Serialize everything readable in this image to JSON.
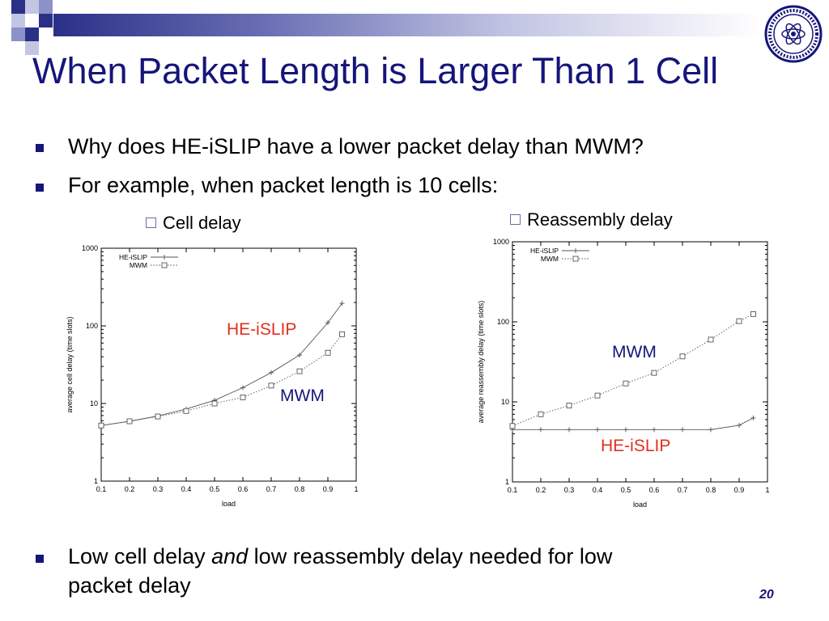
{
  "slide": {
    "title": "When Packet Length is Larger Than 1 Cell",
    "bullets": [
      "Why does HE-iSLIP have a lower packet delay than MWM?",
      "For example, when packet length is 10 cells:"
    ],
    "sub_items": [
      "Cell delay",
      "Reassembly delay"
    ],
    "bottom_bullet": {
      "line1_before": "Low cell delay ",
      "line1_emph": "and",
      "line1_after": " low reassembly delay  needed for low",
      "line2": "packet delay"
    },
    "page_number": "20",
    "colors": {
      "title": "#15157a",
      "annotation_red": "#e0301e",
      "annotation_blue": "#15157a"
    }
  },
  "chart_data": [
    {
      "type": "line",
      "xlabel": "load",
      "ylabel": "average cell delay (time slots)",
      "yscale": "log",
      "xlim": [
        0.1,
        1
      ],
      "ylim": [
        1,
        1000
      ],
      "x_ticks": [
        "0.1",
        "0.2",
        "0.3",
        "0.4",
        "0.5",
        "0.6",
        "0.7",
        "0.8",
        "0.9",
        "1"
      ],
      "y_ticks": [
        "1",
        "10",
        "100",
        "1000"
      ],
      "legend": [
        "HE-iSLIP",
        "MWM"
      ],
      "legend_position": "top-left",
      "series": [
        {
          "name": "HE-iSLIP",
          "x": [
            0.1,
            0.2,
            0.3,
            0.4,
            0.5,
            0.6,
            0.7,
            0.8,
            0.9,
            0.95
          ],
          "values": [
            5.2,
            5.9,
            6.9,
            8.5,
            11,
            16,
            25,
            42,
            110,
            195
          ],
          "marker": "plus",
          "style": "solid"
        },
        {
          "name": "MWM",
          "x": [
            0.1,
            0.2,
            0.3,
            0.4,
            0.5,
            0.6,
            0.7,
            0.8,
            0.9,
            0.95
          ],
          "values": [
            5.2,
            5.9,
            6.8,
            8,
            10,
            12,
            17,
            26,
            45,
            78
          ],
          "marker": "square",
          "style": "dotted"
        }
      ],
      "annotations": [
        {
          "text": "HE-iSLIP",
          "color": "#e0301e"
        },
        {
          "text": "MWM",
          "color": "#15157a"
        }
      ]
    },
    {
      "type": "line",
      "xlabel": "load",
      "ylabel": "average reassembly delay (time slots)",
      "yscale": "log",
      "xlim": [
        0.1,
        1
      ],
      "ylim": [
        1,
        1000
      ],
      "x_ticks": [
        "0.1",
        "0.2",
        "0.3",
        "0.4",
        "0.5",
        "0.6",
        "0.7",
        "0.8",
        "0.9",
        "1"
      ],
      "y_ticks": [
        "1",
        "10",
        "100",
        "1000"
      ],
      "legend": [
        "HE-iSLIP",
        "MWM"
      ],
      "legend_position": "top-left",
      "series": [
        {
          "name": "HE-iSLIP",
          "x": [
            0.1,
            0.2,
            0.3,
            0.4,
            0.5,
            0.6,
            0.7,
            0.8,
            0.9,
            0.95
          ],
          "values": [
            4.5,
            4.5,
            4.5,
            4.5,
            4.5,
            4.5,
            4.5,
            4.5,
            5.1,
            6.3
          ],
          "marker": "plus",
          "style": "solid"
        },
        {
          "name": "MWM",
          "x": [
            0.1,
            0.2,
            0.3,
            0.4,
            0.5,
            0.6,
            0.7,
            0.8,
            0.9,
            0.95
          ],
          "values": [
            5,
            7,
            9,
            12,
            17,
            23,
            37,
            60,
            102,
            125
          ],
          "marker": "square",
          "style": "dotted"
        }
      ],
      "annotations": [
        {
          "text": "MWM",
          "color": "#15157a"
        },
        {
          "text": "HE-iSLIP",
          "color": "#e0301e"
        }
      ]
    }
  ]
}
